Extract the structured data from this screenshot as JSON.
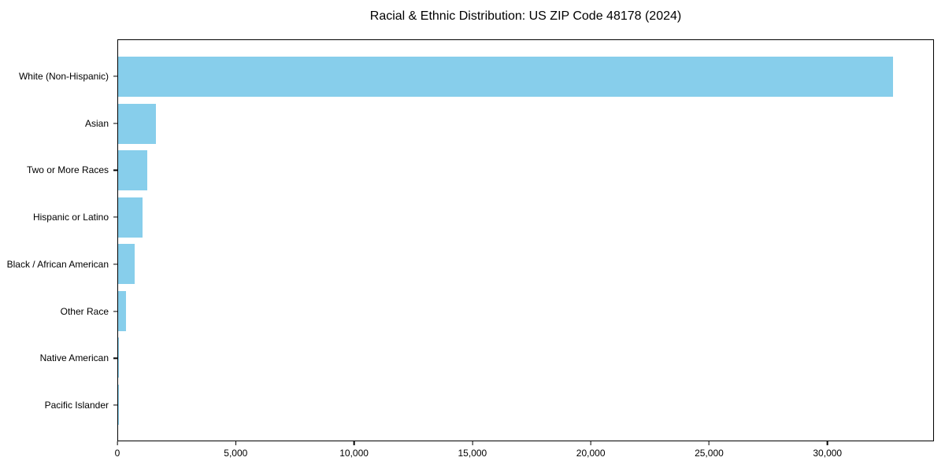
{
  "title": "Racial & Ethnic Distribution: US ZIP Code 48178 (2024)",
  "colors": {
    "bar": "#87CEEB",
    "axis": "#000000",
    "text": "#000000",
    "background": "#ffffff"
  },
  "chart_data": {
    "type": "bar",
    "orientation": "horizontal",
    "title": "Racial & Ethnic Distribution: US ZIP Code 48178 (2024)",
    "xlabel": "",
    "ylabel": "",
    "categories": [
      "White (Non-Hispanic)",
      "Asian",
      "Two or More Races",
      "Hispanic or Latino",
      "Black / African American",
      "Other Race",
      "Native American",
      "Pacific Islander"
    ],
    "values": [
      32800,
      1600,
      1240,
      1040,
      690,
      320,
      20,
      10
    ],
    "xlim": [
      0,
      34500
    ],
    "x_ticks": [
      0,
      5000,
      10000,
      15000,
      20000,
      25000,
      30000
    ],
    "x_tick_labels": [
      "0",
      "5,000",
      "10,000",
      "15,000",
      "20,000",
      "25,000",
      "30,000"
    ],
    "grid": false,
    "legend": false,
    "bar_color": "#87CEEB"
  }
}
